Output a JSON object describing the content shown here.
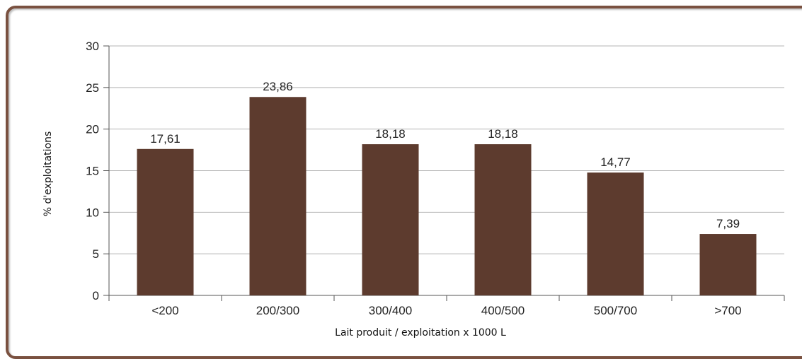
{
  "chart_data": {
    "type": "bar",
    "categories": [
      "<200",
      "200/300",
      "300/400",
      "400/500",
      "500/700",
      ">700"
    ],
    "values": [
      17.61,
      23.86,
      18.18,
      18.18,
      14.77,
      7.39
    ],
    "data_labels": [
      "17,61",
      "23,86",
      "18,18",
      "18,18",
      "14,77",
      "7,39"
    ],
    "xlabel": "Lait produit / exploitation x 1000 L",
    "ylabel": "% d'exploitations",
    "ylim": [
      0,
      30
    ],
    "yticks": [
      0,
      5,
      10,
      15,
      20,
      25,
      30
    ],
    "grid": true,
    "legend": "none"
  },
  "colors": {
    "bar": "#5d3b2e",
    "grid": "#b5b5b5",
    "frame": "#7a5140"
  }
}
